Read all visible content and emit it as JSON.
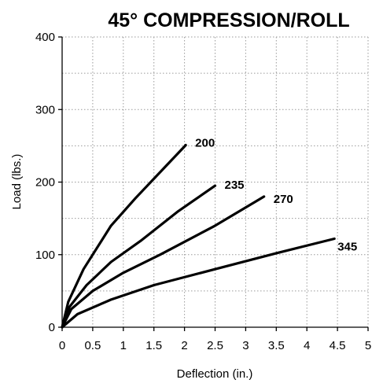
{
  "chart_data": {
    "type": "line",
    "title": "45° COMPRESSION/ROLL",
    "xlabel": "Deflection (in.)",
    "ylabel": "Load (lbs.)",
    "xlim": [
      0,
      5
    ],
    "ylim": [
      0,
      400
    ],
    "xticks": [
      "0",
      "0.5",
      "1",
      "1.5",
      "2",
      "2.5",
      "3",
      "3.5",
      "4",
      "4.5",
      "5"
    ],
    "yticks": [
      "0",
      "100",
      "200",
      "300",
      "400"
    ],
    "grid": true,
    "series": [
      {
        "name": "200",
        "x": [
          0,
          0.1,
          0.35,
          0.8,
          1.2,
          1.65,
          2.02
        ],
        "y": [
          0,
          35,
          80,
          140,
          178,
          218,
          251
        ]
      },
      {
        "name": "235",
        "x": [
          0,
          0.12,
          0.4,
          0.8,
          1.3,
          1.9,
          2.5
        ],
        "y": [
          0,
          28,
          58,
          90,
          120,
          160,
          195
        ]
      },
      {
        "name": "270",
        "x": [
          0,
          0.15,
          0.5,
          1.0,
          1.6,
          2.5,
          3.3
        ],
        "y": [
          0,
          25,
          50,
          75,
          100,
          140,
          180
        ]
      },
      {
        "name": "345",
        "x": [
          0,
          0.25,
          0.8,
          1.5,
          2.5,
          3.5,
          4.45
        ],
        "y": [
          0,
          18,
          38,
          58,
          80,
          102,
          122
        ]
      }
    ]
  }
}
